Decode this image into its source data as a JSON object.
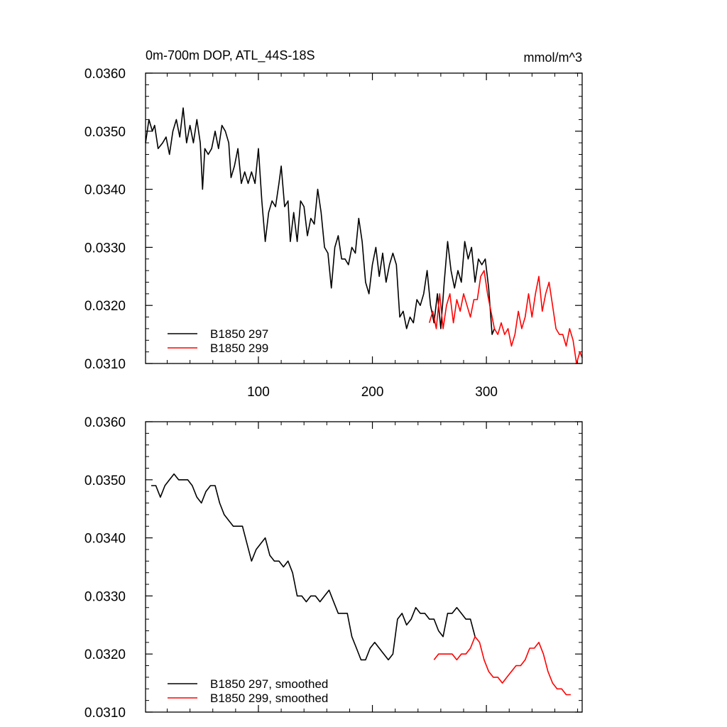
{
  "chart_data": [
    {
      "type": "line",
      "title": "0m-700m DOP, ATL_44S-18S",
      "units": "mmol/m^3",
      "xlabel": "",
      "ylabel": "",
      "xlim": [
        1,
        384
      ],
      "ylim": [
        0.031,
        0.036
      ],
      "xticks": [
        100,
        200,
        300
      ],
      "xtick_labels": [
        "100",
        "200",
        "300"
      ],
      "yticks": [
        0.031,
        0.032,
        0.033,
        0.034,
        0.035,
        0.036
      ],
      "ytick_labels": [
        "0.0310",
        "0.0320",
        "0.0330",
        "0.0340",
        "0.0350",
        "0.0360"
      ],
      "grid": false,
      "legend_position": "bottom-left",
      "series": [
        {
          "name": "B1850 297",
          "color": "#000000",
          "points": [
            [
              1,
              0.0348
            ],
            [
              4,
              0.0352
            ],
            [
              7,
              0.035
            ],
            [
              9,
              0.0351
            ],
            [
              12,
              0.0347
            ],
            [
              16,
              0.0348
            ],
            [
              19,
              0.0349
            ],
            [
              22,
              0.0346
            ],
            [
              25,
              0.035
            ],
            [
              28,
              0.0352
            ],
            [
              31,
              0.0349
            ],
            [
              34,
              0.0354
            ],
            [
              37,
              0.0348
            ],
            [
              40,
              0.0351
            ],
            [
              43,
              0.0348
            ],
            [
              46,
              0.0352
            ],
            [
              49,
              0.0348
            ],
            [
              51,
              0.034
            ],
            [
              53,
              0.0347
            ],
            [
              56,
              0.0346
            ],
            [
              59,
              0.0347
            ],
            [
              62,
              0.035
            ],
            [
              65,
              0.0347
            ],
            [
              68,
              0.0351
            ],
            [
              71,
              0.035
            ],
            [
              74,
              0.0348
            ],
            [
              76,
              0.0342
            ],
            [
              79,
              0.0344
            ],
            [
              82,
              0.0347
            ],
            [
              85,
              0.0341
            ],
            [
              88,
              0.0343
            ],
            [
              91,
              0.0341
            ],
            [
              94,
              0.0343
            ],
            [
              97,
              0.0341
            ],
            [
              100,
              0.0347
            ],
            [
              103,
              0.0338
            ],
            [
              106,
              0.0331
            ],
            [
              109,
              0.0336
            ],
            [
              112,
              0.0338
            ],
            [
              115,
              0.0337
            ],
            [
              118,
              0.0341
            ],
            [
              120,
              0.0344
            ],
            [
              123,
              0.0337
            ],
            [
              126,
              0.0338
            ],
            [
              128,
              0.0331
            ],
            [
              131,
              0.0336
            ],
            [
              134,
              0.0331
            ],
            [
              137,
              0.0338
            ],
            [
              140,
              0.0337
            ],
            [
              143,
              0.0332
            ],
            [
              146,
              0.0335
            ],
            [
              149,
              0.0334
            ],
            [
              152,
              0.034
            ],
            [
              155,
              0.0336
            ],
            [
              158,
              0.033
            ],
            [
              161,
              0.0329
            ],
            [
              164,
              0.0323
            ],
            [
              167,
              0.033
            ],
            [
              170,
              0.0332
            ],
            [
              173,
              0.0328
            ],
            [
              176,
              0.0328
            ],
            [
              179,
              0.0327
            ],
            [
              182,
              0.033
            ],
            [
              185,
              0.0329
            ],
            [
              188,
              0.0335
            ],
            [
              191,
              0.0331
            ],
            [
              194,
              0.0324
            ],
            [
              197,
              0.0322
            ],
            [
              200,
              0.0327
            ],
            [
              203,
              0.033
            ],
            [
              206,
              0.0325
            ],
            [
              209,
              0.0329
            ],
            [
              212,
              0.0324
            ],
            [
              215,
              0.0327
            ],
            [
              218,
              0.0329
            ],
            [
              221,
              0.0327
            ],
            [
              224,
              0.0318
            ],
            [
              227,
              0.0319
            ],
            [
              230,
              0.0316
            ],
            [
              233,
              0.0318
            ],
            [
              236,
              0.0317
            ],
            [
              239,
              0.0321
            ],
            [
              242,
              0.032
            ],
            [
              245,
              0.0322
            ],
            [
              248,
              0.0326
            ],
            [
              251,
              0.032
            ],
            [
              254,
              0.0317
            ],
            [
              257,
              0.0322
            ],
            [
              260,
              0.0316
            ],
            [
              263,
              0.0324
            ],
            [
              266,
              0.0331
            ],
            [
              269,
              0.0326
            ],
            [
              272,
              0.0323
            ],
            [
              275,
              0.0326
            ],
            [
              278,
              0.0324
            ],
            [
              281,
              0.0331
            ],
            [
              284,
              0.0328
            ],
            [
              287,
              0.033
            ],
            [
              290,
              0.0324
            ],
            [
              293,
              0.0328
            ],
            [
              296,
              0.0327
            ],
            [
              299,
              0.0328
            ],
            [
              302,
              0.0323
            ],
            [
              305,
              0.0315
            ],
            [
              307,
              0.0316
            ]
          ]
        },
        {
          "name": "B1850 299",
          "color": "#ff0000",
          "points": [
            [
              250,
              0.0317
            ],
            [
              253,
              0.0319
            ],
            [
              256,
              0.0316
            ],
            [
              259,
              0.0322
            ],
            [
              262,
              0.0316
            ],
            [
              265,
              0.032
            ],
            [
              268,
              0.0322
            ],
            [
              271,
              0.0317
            ],
            [
              274,
              0.0321
            ],
            [
              277,
              0.0319
            ],
            [
              280,
              0.0322
            ],
            [
              283,
              0.032
            ],
            [
              286,
              0.0318
            ],
            [
              289,
              0.0321
            ],
            [
              292,
              0.0321
            ],
            [
              295,
              0.0325
            ],
            [
              298,
              0.0326
            ],
            [
              301,
              0.0322
            ],
            [
              304,
              0.0319
            ],
            [
              307,
              0.0316
            ],
            [
              310,
              0.0315
            ],
            [
              313,
              0.0317
            ],
            [
              316,
              0.0315
            ],
            [
              319,
              0.0316
            ],
            [
              322,
              0.0313
            ],
            [
              325,
              0.0315
            ],
            [
              328,
              0.0319
            ],
            [
              331,
              0.0316
            ],
            [
              334,
              0.0318
            ],
            [
              337,
              0.0322
            ],
            [
              340,
              0.0318
            ],
            [
              343,
              0.0322
            ],
            [
              346,
              0.0325
            ],
            [
              349,
              0.0319
            ],
            [
              352,
              0.0322
            ],
            [
              355,
              0.0324
            ],
            [
              358,
              0.032
            ],
            [
              361,
              0.0316
            ],
            [
              364,
              0.0315
            ],
            [
              367,
              0.0315
            ],
            [
              370,
              0.0313
            ],
            [
              373,
              0.0316
            ],
            [
              376,
              0.0314
            ],
            [
              379,
              0.031
            ],
            [
              382,
              0.0312
            ],
            [
              384,
              0.0311
            ]
          ]
        }
      ]
    },
    {
      "type": "line",
      "title": "",
      "units": "",
      "xlabel": "",
      "ylabel": "",
      "xlim": [
        1,
        384
      ],
      "ylim": [
        0.031,
        0.036
      ],
      "xticks": [
        100,
        200,
        300
      ],
      "xtick_labels": [],
      "yticks": [
        0.031,
        0.032,
        0.033,
        0.034,
        0.035,
        0.036
      ],
      "ytick_labels": [
        "0.0310",
        "0.0320",
        "0.0330",
        "0.0340",
        "0.0350",
        "0.0360"
      ],
      "grid": false,
      "legend_position": "bottom-left",
      "series": [
        {
          "name": "B1850 297, smoothed",
          "color": "#000000",
          "points": [
            [
              6,
              0.0349
            ],
            [
              10,
              0.0349
            ],
            [
              14,
              0.0347
            ],
            [
              18,
              0.0349
            ],
            [
              22,
              0.035
            ],
            [
              26,
              0.0351
            ],
            [
              30,
              0.035
            ],
            [
              34,
              0.035
            ],
            [
              38,
              0.035
            ],
            [
              42,
              0.0349
            ],
            [
              46,
              0.0347
            ],
            [
              50,
              0.0346
            ],
            [
              54,
              0.0348
            ],
            [
              58,
              0.0349
            ],
            [
              62,
              0.0349
            ],
            [
              66,
              0.0346
            ],
            [
              70,
              0.0344
            ],
            [
              74,
              0.0343
            ],
            [
              78,
              0.0342
            ],
            [
              82,
              0.0342
            ],
            [
              86,
              0.0342
            ],
            [
              90,
              0.0339
            ],
            [
              94,
              0.0336
            ],
            [
              98,
              0.0338
            ],
            [
              102,
              0.0339
            ],
            [
              106,
              0.034
            ],
            [
              110,
              0.0337
            ],
            [
              114,
              0.0336
            ],
            [
              118,
              0.0336
            ],
            [
              122,
              0.0335
            ],
            [
              126,
              0.0336
            ],
            [
              130,
              0.0334
            ],
            [
              134,
              0.033
            ],
            [
              138,
              0.033
            ],
            [
              142,
              0.0329
            ],
            [
              146,
              0.033
            ],
            [
              150,
              0.033
            ],
            [
              154,
              0.0329
            ],
            [
              158,
              0.033
            ],
            [
              162,
              0.0331
            ],
            [
              166,
              0.0329
            ],
            [
              170,
              0.0327
            ],
            [
              174,
              0.0327
            ],
            [
              178,
              0.0327
            ],
            [
              182,
              0.0323
            ],
            [
              186,
              0.0321
            ],
            [
              190,
              0.0319
            ],
            [
              194,
              0.0319
            ],
            [
              198,
              0.0321
            ],
            [
              202,
              0.0322
            ],
            [
              206,
              0.0321
            ],
            [
              210,
              0.032
            ],
            [
              214,
              0.0319
            ],
            [
              218,
              0.032
            ],
            [
              222,
              0.0326
            ],
            [
              226,
              0.0327
            ],
            [
              230,
              0.0325
            ],
            [
              234,
              0.0326
            ],
            [
              238,
              0.0328
            ],
            [
              242,
              0.0327
            ],
            [
              246,
              0.0327
            ],
            [
              250,
              0.0326
            ],
            [
              254,
              0.0326
            ],
            [
              258,
              0.0324
            ],
            [
              262,
              0.0323
            ],
            [
              266,
              0.0327
            ],
            [
              270,
              0.0327
            ],
            [
              274,
              0.0328
            ],
            [
              278,
              0.0327
            ],
            [
              282,
              0.0326
            ],
            [
              286,
              0.0326
            ],
            [
              290,
              0.0323
            ]
          ]
        },
        {
          "name": "B1850 299, smoothed",
          "color": "#ff0000",
          "points": [
            [
              254,
              0.0319
            ],
            [
              258,
              0.032
            ],
            [
              262,
              0.032
            ],
            [
              266,
              0.032
            ],
            [
              270,
              0.032
            ],
            [
              274,
              0.0319
            ],
            [
              278,
              0.032
            ],
            [
              282,
              0.032
            ],
            [
              286,
              0.0321
            ],
            [
              290,
              0.0323
            ],
            [
              294,
              0.0322
            ],
            [
              298,
              0.0319
            ],
            [
              302,
              0.0317
            ],
            [
              306,
              0.0316
            ],
            [
              310,
              0.0316
            ],
            [
              314,
              0.0315
            ],
            [
              318,
              0.0316
            ],
            [
              322,
              0.0317
            ],
            [
              326,
              0.0318
            ],
            [
              330,
              0.0318
            ],
            [
              334,
              0.0319
            ],
            [
              338,
              0.0321
            ],
            [
              342,
              0.0321
            ],
            [
              346,
              0.0322
            ],
            [
              350,
              0.032
            ],
            [
              354,
              0.0317
            ],
            [
              358,
              0.0315
            ],
            [
              362,
              0.0314
            ],
            [
              366,
              0.0314
            ],
            [
              370,
              0.0313
            ],
            [
              374,
              0.0313
            ]
          ]
        }
      ]
    }
  ]
}
